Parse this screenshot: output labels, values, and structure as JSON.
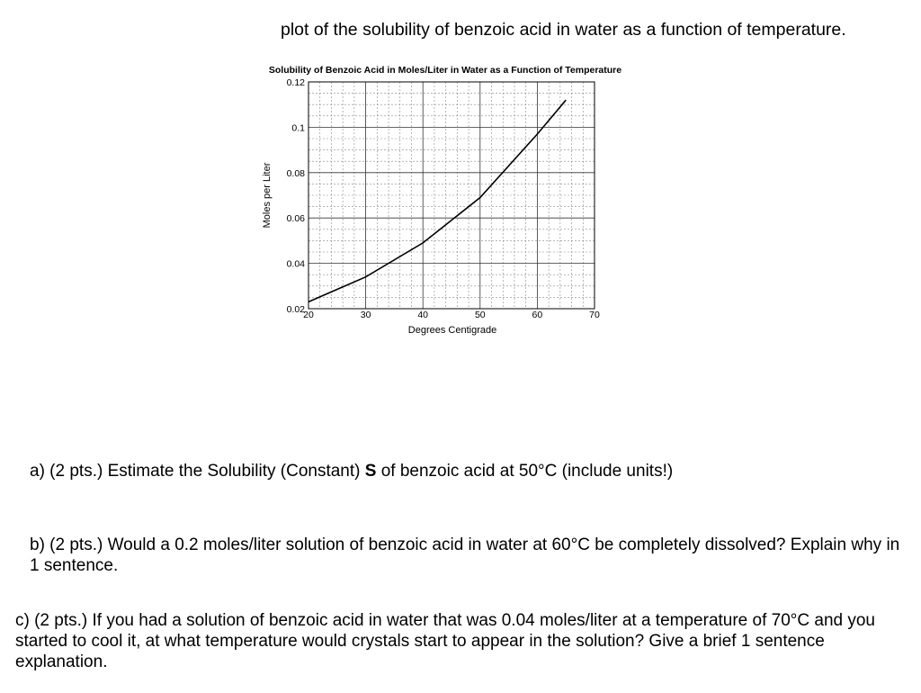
{
  "intro_text": "plot of the solubility of benzoic acid in water as a function of temperature.",
  "chart_data": {
    "type": "line",
    "title": "Solubility of Benzoic Acid in Moles/Liter in Water as a Function of Temperature",
    "xlabel": "Degrees Centigrade",
    "ylabel": "Moles per Liter",
    "xlim": [
      20,
      70
    ],
    "ylim": [
      0.02,
      0.12
    ],
    "x_ticks": [
      20,
      30,
      40,
      50,
      60,
      70
    ],
    "y_ticks": [
      0.02,
      0.04,
      0.06,
      0.08,
      0.1,
      0.12
    ],
    "grid": true,
    "series": [
      {
        "x": [
          20,
          30,
          40,
          50,
          60,
          65
        ],
        "y": [
          0.023,
          0.034,
          0.049,
          0.069,
          0.097,
          0.112
        ]
      }
    ]
  },
  "questions": {
    "a": {
      "prefix": "a) (2 pts.) Estimate the Solubility (Constant) ",
      "bold": "S",
      "suffix": " of benzoic acid at 50°C (include units!)"
    },
    "b": {
      "text": "b) (2 pts.) Would a 0.2 moles/liter solution of benzoic acid in water at 60°C be completely dissolved? Explain why in 1 sentence."
    },
    "c": {
      "text": "c) (2 pts.) If you had a solution of benzoic acid in water that was 0.04 moles/liter at a temperature of 70°C and you started to cool it, at what temperature would crystals start to appear in the solution? Give a brief 1 sentence explanation."
    }
  }
}
